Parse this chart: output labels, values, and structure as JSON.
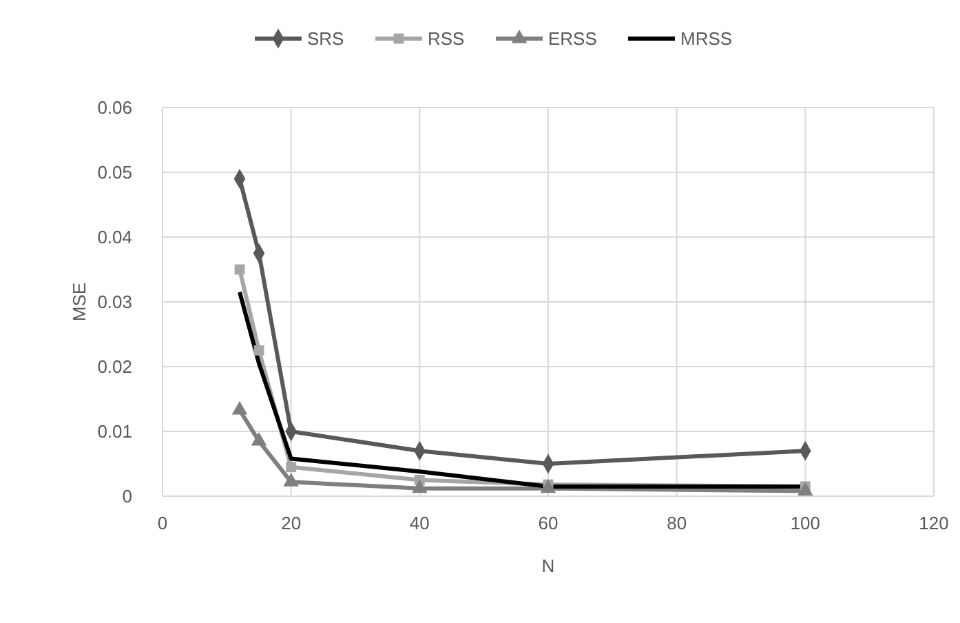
{
  "chart_data": {
    "type": "line",
    "xlabel": "N",
    "ylabel": "MSE",
    "x": [
      12,
      15,
      20,
      40,
      60,
      100
    ],
    "xlim": [
      0,
      120
    ],
    "xticks": [
      0,
      20,
      40,
      60,
      80,
      100,
      120
    ],
    "ylim": [
      0,
      0.06
    ],
    "yticks": [
      {
        "value": 0,
        "label": "0"
      },
      {
        "value": 0.01,
        "label": "0.01"
      },
      {
        "value": 0.02,
        "label": "0.02"
      },
      {
        "value": 0.03,
        "label": "0.03"
      },
      {
        "value": 0.04,
        "label": "0.04"
      },
      {
        "value": 0.05,
        "label": "0.05"
      },
      {
        "value": 0.06,
        "label": "0.06"
      }
    ],
    "grid": true,
    "legend": "top",
    "line_style": "solid",
    "series": [
      {
        "name": "SRS",
        "color": "#595959",
        "marker": "diamond",
        "values": [
          0.049,
          0.0375,
          0.01,
          0.007,
          0.005,
          0.007
        ]
      },
      {
        "name": "RSS",
        "color": "#a6a6a6",
        "marker": "square",
        "values": [
          0.035,
          0.0225,
          0.0045,
          0.0025,
          0.0018,
          0.0015
        ]
      },
      {
        "name": "ERSS",
        "color": "#7f7f7f",
        "marker": "triangle",
        "values": [
          0.0133,
          0.0085,
          0.0022,
          0.0012,
          0.0012,
          0.0008
        ]
      },
      {
        "name": "MRSS",
        "color": "#000000",
        "marker": "none",
        "values": [
          0.0315,
          0.0205,
          0.0058,
          0.0038,
          0.0015,
          0.0015
        ]
      }
    ]
  }
}
